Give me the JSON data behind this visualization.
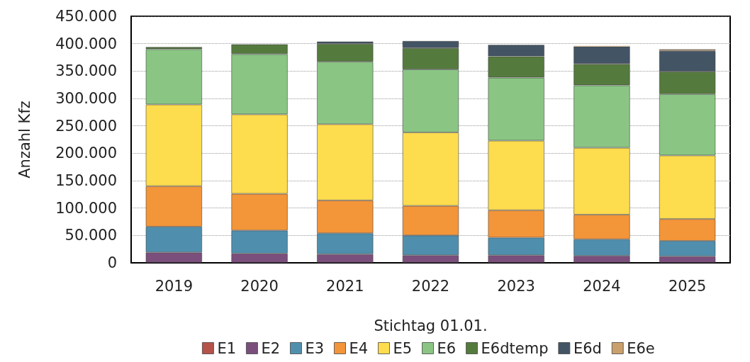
{
  "chart_data": {
    "type": "bar",
    "stacked": true,
    "xlabel": "Stichtag 01.01.",
    "ylabel": "Anzahl Kfz",
    "categories": [
      "2019",
      "2020",
      "2021",
      "2022",
      "2023",
      "2024",
      "2025"
    ],
    "ylim": [
      0,
      450000
    ],
    "yticks": [
      {
        "value": 0,
        "label": "0"
      },
      {
        "value": 50000,
        "label": "50.000"
      },
      {
        "value": 100000,
        "label": "100.000"
      },
      {
        "value": 150000,
        "label": "150.000"
      },
      {
        "value": 200000,
        "label": "200.000"
      },
      {
        "value": 250000,
        "label": "250.000"
      },
      {
        "value": 300000,
        "label": "300.000"
      },
      {
        "value": 350000,
        "label": "350.000"
      },
      {
        "value": 400000,
        "label": "400.000"
      },
      {
        "value": 450000,
        "label": "450.000"
      }
    ],
    "grid": "y",
    "legend": "bottom",
    "series": [
      {
        "name": "E1",
        "color": "#b5524a",
        "values": [
          0,
          0,
          0,
          0,
          0,
          0,
          0
        ]
      },
      {
        "name": "E2",
        "color": "#7b4f7c",
        "values": [
          19000,
          17000,
          16000,
          14000,
          14000,
          13000,
          12000
        ]
      },
      {
        "name": "E3",
        "color": "#4f8fad",
        "values": [
          47000,
          42000,
          38000,
          36000,
          32000,
          30000,
          28000
        ]
      },
      {
        "name": "E4",
        "color": "#f39539",
        "values": [
          74000,
          67000,
          60000,
          54000,
          50000,
          45000,
          40000
        ]
      },
      {
        "name": "E5",
        "color": "#fddc4e",
        "values": [
          149000,
          145000,
          139000,
          134000,
          127000,
          122000,
          116000
        ]
      },
      {
        "name": "E6",
        "color": "#8ac584",
        "values": [
          101000,
          110000,
          114000,
          115000,
          115000,
          114000,
          112000
        ]
      },
      {
        "name": "E6dtemp",
        "color": "#557a3e",
        "values": [
          4000,
          18000,
          33000,
          39000,
          39000,
          39000,
          41000
        ]
      },
      {
        "name": "E6d",
        "color": "#435465",
        "values": [
          0,
          null,
          4000,
          13000,
          21000,
          32000,
          38000
        ]
      },
      {
        "name": "E6e",
        "color": "#c9a06c",
        "values": [
          0,
          0,
          0,
          0,
          0,
          1000,
          3000
        ]
      }
    ]
  }
}
